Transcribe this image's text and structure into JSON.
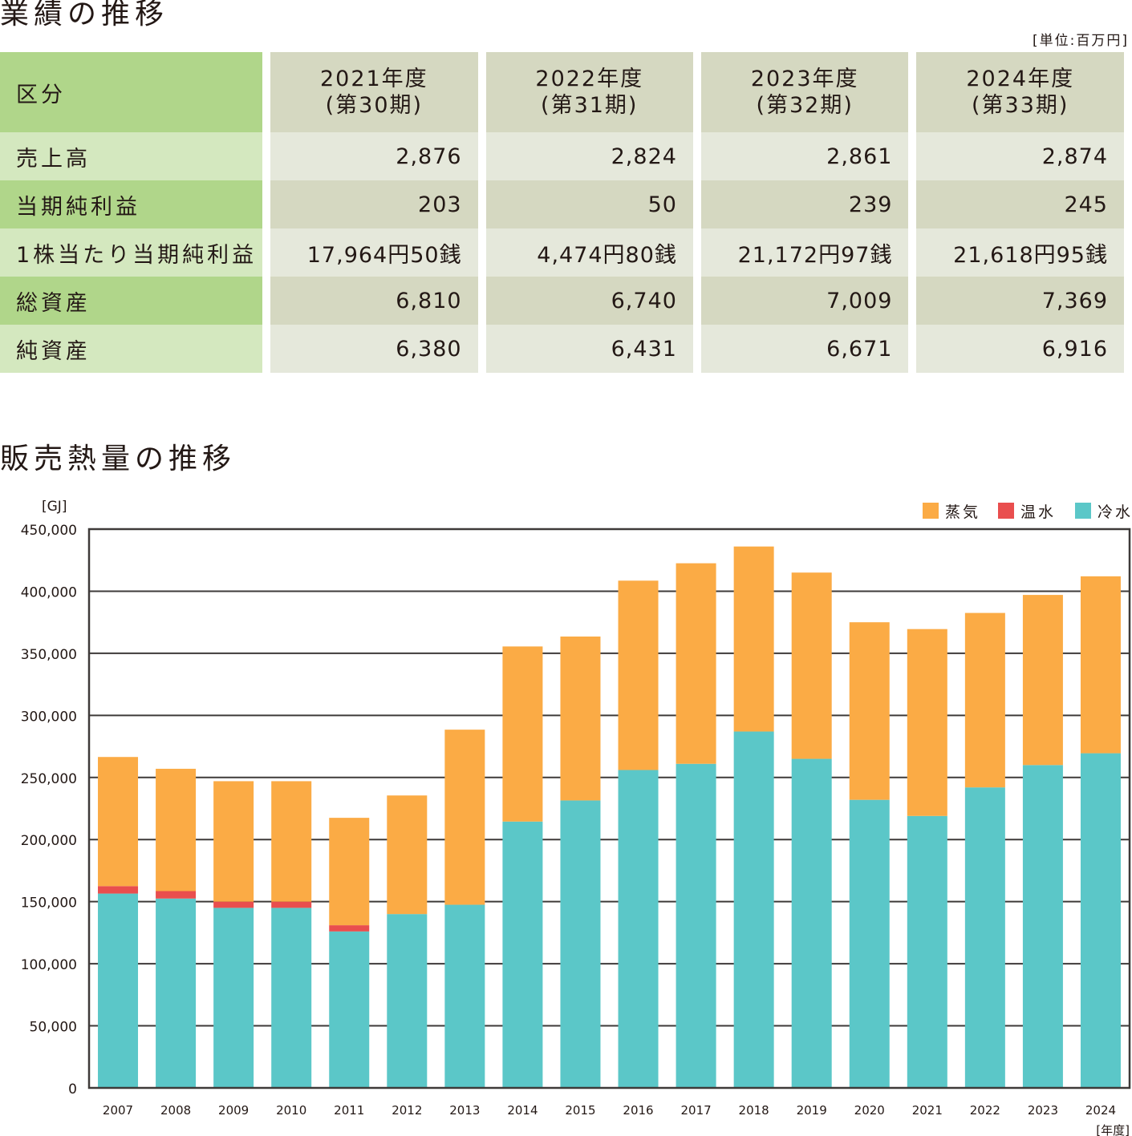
{
  "performance": {
    "title": "業績の推移",
    "unit": "[単位:百万円]",
    "header_label": "区分",
    "years": [
      {
        "year": "2021年度",
        "period": "(第30期)"
      },
      {
        "year": "2022年度",
        "period": "(第31期)"
      },
      {
        "year": "2023年度",
        "period": "(第32期)"
      },
      {
        "year": "2024年度",
        "period": "(第33期)"
      }
    ],
    "rows": [
      {
        "label": "売上高",
        "values": [
          "2,876",
          "2,824",
          "2,861",
          "2,874"
        ]
      },
      {
        "label": "当期純利益",
        "values": [
          "203",
          "50",
          "239",
          "245"
        ]
      },
      {
        "label": "1株当たり当期純利益",
        "values": [
          "17,964円50銭",
          "4,474円80銭",
          "21,172円97銭",
          "21,618円95銭"
        ]
      },
      {
        "label": "総資産",
        "values": [
          "6,810",
          "6,740",
          "7,009",
          "7,369"
        ]
      },
      {
        "label": "純資産",
        "values": [
          "6,380",
          "6,431",
          "6,671",
          "6,916"
        ]
      }
    ],
    "colors": {
      "label_dark": "#b0d68a",
      "label_light": "#d4e8bf",
      "value_dark": "#d5d8c1",
      "value_light": "#e5e8db"
    }
  },
  "chart_data": {
    "type": "bar",
    "stacked": true,
    "title": "販売熱量の推移",
    "ylabel": "[GJ]",
    "xlabel": "[年度]",
    "ylim": [
      0,
      450000
    ],
    "yticks": [
      0,
      50000,
      100000,
      150000,
      200000,
      250000,
      300000,
      350000,
      400000,
      450000
    ],
    "ytick_labels": [
      "0",
      "50,000",
      "100,000",
      "150,000",
      "200,000",
      "250,000",
      "300,000",
      "350,000",
      "400,000",
      "450,000"
    ],
    "grid": true,
    "legend_position": "top-right",
    "categories": [
      "2007",
      "2008",
      "2009",
      "2010",
      "2011",
      "2012",
      "2013",
      "2014",
      "2015",
      "2016",
      "2017",
      "2018",
      "2019",
      "2020",
      "2021",
      "2022",
      "2023",
      "2024"
    ],
    "series": [
      {
        "name": "冷水",
        "color": "#5bc7c8",
        "values": [
          156500,
          152500,
          145000,
          145000,
          126000,
          140000,
          147500,
          214500,
          231500,
          256000,
          261000,
          287000,
          265000,
          232000,
          219000,
          242000,
          260000,
          269500
        ]
      },
      {
        "name": "温水",
        "color": "#e94e4e",
        "values": [
          6000,
          6000,
          5000,
          5000,
          5000,
          0,
          0,
          0,
          0,
          0,
          0,
          0,
          0,
          0,
          0,
          0,
          0,
          0
        ]
      },
      {
        "name": "蒸気",
        "color": "#fbab45",
        "values": [
          104000,
          98500,
          97000,
          97000,
          86500,
          95500,
          141000,
          141000,
          132000,
          152500,
          161500,
          149000,
          150000,
          143000,
          150500,
          140500,
          137000,
          142500
        ]
      }
    ],
    "legend_order": [
      "蒸気",
      "温水",
      "冷水"
    ]
  }
}
